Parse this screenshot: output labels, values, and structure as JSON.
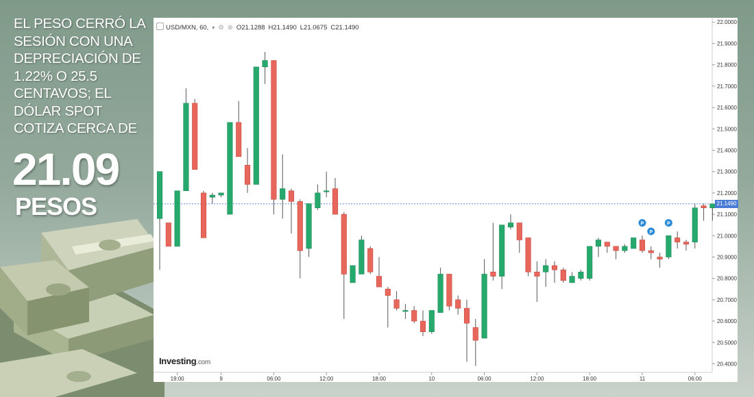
{
  "headline": "EL PESO CERRÓ LA SESIÓN CON UNA DEPRECIACIÓN DE 1.22% O 25.5 CENTAVOS; EL DÓLAR SPOT COTIZA CERCA DE",
  "big_price": "21.09",
  "big_unit": "PESOS",
  "chart_header": {
    "symbol": "USD/MXN, 60,",
    "open": "O21.1288",
    "high": "H21.1490",
    "low": "L21.0675",
    "close": "C21.1490"
  },
  "logo": {
    "brand": "Investing",
    "suffix": ".com"
  },
  "last_price_label": "21.1490",
  "colors": {
    "up": "#26a96c",
    "down": "#e8675c",
    "wick": "#555555",
    "last_line": "#4a7bd6",
    "marker": "#2a8ad8"
  },
  "chart_data": {
    "type": "candlestick",
    "title": "",
    "symbol": "USD/MXN",
    "interval": "60",
    "ylim": [
      20.36,
      22.02
    ],
    "y_ticks": [
      "22.0000",
      "21.9000",
      "21.8000",
      "21.7000",
      "21.6000",
      "21.5000",
      "21.4000",
      "21.3000",
      "21.2000",
      "21.1000",
      "21.0000",
      "20.9000",
      "20.8000",
      "20.7000",
      "20.6000",
      "20.5000",
      "20.4000"
    ],
    "x_ticks": [
      {
        "label": "19:00",
        "index": 2
      },
      {
        "label": "9",
        "index": 7
      },
      {
        "label": "06:00",
        "index": 13
      },
      {
        "label": "12:00",
        "index": 19
      },
      {
        "label": "18:00",
        "index": 25
      },
      {
        "label": "10",
        "index": 31
      },
      {
        "label": "06:00",
        "index": 37
      },
      {
        "label": "12:00",
        "index": 43
      },
      {
        "label": "18:00",
        "index": 49
      },
      {
        "label": "11",
        "index": 55
      },
      {
        "label": "06:00",
        "index": 61
      }
    ],
    "last_price": 21.149,
    "markers": [
      {
        "label": "P",
        "index": 55,
        "y": 21.06
      },
      {
        "label": "P",
        "index": 56,
        "y": 21.02
      },
      {
        "label": "P",
        "index": 58,
        "y": 21.06
      }
    ],
    "candles": [
      {
        "o": 21.08,
        "h": 21.3,
        "l": 20.84,
        "c": 21.3
      },
      {
        "o": 21.06,
        "h": 21.06,
        "l": 20.95,
        "c": 20.95
      },
      {
        "o": 20.95,
        "h": 21.21,
        "l": 20.95,
        "c": 21.21
      },
      {
        "o": 21.21,
        "h": 21.69,
        "l": 21.21,
        "c": 21.62
      },
      {
        "o": 21.62,
        "h": 21.64,
        "l": 21.31,
        "c": 21.31
      },
      {
        "o": 21.2,
        "h": 21.21,
        "l": 20.99,
        "c": 20.99
      },
      {
        "o": 21.18,
        "h": 21.2,
        "l": 21.15,
        "c": 21.19
      },
      {
        "o": 21.19,
        "h": 21.2,
        "l": 21.18,
        "c": 21.2
      },
      {
        "o": 21.1,
        "h": 21.53,
        "l": 21.1,
        "c": 21.53
      },
      {
        "o": 21.53,
        "h": 21.63,
        "l": 21.37,
        "c": 21.37
      },
      {
        "o": 21.33,
        "h": 21.41,
        "l": 21.2,
        "c": 21.24
      },
      {
        "o": 21.24,
        "h": 21.79,
        "l": 21.24,
        "c": 21.79
      },
      {
        "o": 21.79,
        "h": 21.86,
        "l": 21.71,
        "c": 21.82
      },
      {
        "o": 21.82,
        "h": 21.82,
        "l": 21.1,
        "c": 21.17
      },
      {
        "o": 21.17,
        "h": 21.38,
        "l": 21.08,
        "c": 21.22
      },
      {
        "o": 21.21,
        "h": 21.22,
        "l": 21.01,
        "c": 21.16
      },
      {
        "o": 21.16,
        "h": 21.17,
        "l": 20.8,
        "c": 20.93
      },
      {
        "o": 20.94,
        "h": 21.15,
        "l": 20.9,
        "c": 21.15
      },
      {
        "o": 21.13,
        "h": 21.24,
        "l": 21.12,
        "c": 21.2
      },
      {
        "o": 21.21,
        "h": 21.3,
        "l": 21.18,
        "c": 21.21
      },
      {
        "o": 21.22,
        "h": 21.27,
        "l": 21.1,
        "c": 21.1
      },
      {
        "o": 21.1,
        "h": 21.11,
        "l": 20.61,
        "c": 20.82
      },
      {
        "o": 20.78,
        "h": 20.86,
        "l": 20.78,
        "c": 20.86
      },
      {
        "o": 20.82,
        "h": 21.0,
        "l": 20.82,
        "c": 20.98
      },
      {
        "o": 20.94,
        "h": 20.95,
        "l": 20.82,
        "c": 20.83
      },
      {
        "o": 20.81,
        "h": 20.9,
        "l": 20.76,
        "c": 20.76
      },
      {
        "o": 20.75,
        "h": 20.76,
        "l": 20.57,
        "c": 20.72
      },
      {
        "o": 20.7,
        "h": 20.74,
        "l": 20.65,
        "c": 20.66
      },
      {
        "o": 20.65,
        "h": 20.68,
        "l": 20.61,
        "c": 20.65
      },
      {
        "o": 20.65,
        "h": 20.67,
        "l": 20.59,
        "c": 20.6
      },
      {
        "o": 20.6,
        "h": 20.65,
        "l": 20.53,
        "c": 20.55
      },
      {
        "o": 20.55,
        "h": 20.65,
        "l": 20.54,
        "c": 20.65
      },
      {
        "o": 20.64,
        "h": 20.85,
        "l": 20.64,
        "c": 20.82
      },
      {
        "o": 20.82,
        "h": 20.82,
        "l": 20.65,
        "c": 20.67
      },
      {
        "o": 20.7,
        "h": 20.72,
        "l": 20.63,
        "c": 20.66
      },
      {
        "o": 20.66,
        "h": 20.7,
        "l": 20.41,
        "c": 20.59
      },
      {
        "o": 20.57,
        "h": 20.61,
        "l": 20.39,
        "c": 20.51
      },
      {
        "o": 20.52,
        "h": 20.89,
        "l": 20.52,
        "c": 20.82
      },
      {
        "o": 20.83,
        "h": 21.06,
        "l": 20.79,
        "c": 20.81
      },
      {
        "o": 20.81,
        "h": 21.05,
        "l": 20.75,
        "c": 21.05
      },
      {
        "o": 21.04,
        "h": 21.1,
        "l": 21.03,
        "c": 21.06
      },
      {
        "o": 21.06,
        "h": 21.06,
        "l": 20.92,
        "c": 20.98
      },
      {
        "o": 20.99,
        "h": 20.99,
        "l": 20.81,
        "c": 20.83
      },
      {
        "o": 20.83,
        "h": 20.88,
        "l": 20.69,
        "c": 20.81
      },
      {
        "o": 20.83,
        "h": 20.89,
        "l": 20.76,
        "c": 20.86
      },
      {
        "o": 20.86,
        "h": 20.88,
        "l": 20.78,
        "c": 20.84
      },
      {
        "o": 20.84,
        "h": 20.85,
        "l": 20.78,
        "c": 20.79
      },
      {
        "o": 20.78,
        "h": 20.83,
        "l": 20.78,
        "c": 20.81
      },
      {
        "o": 20.8,
        "h": 20.84,
        "l": 20.79,
        "c": 20.83
      },
      {
        "o": 20.8,
        "h": 20.95,
        "l": 20.79,
        "c": 20.95
      },
      {
        "o": 20.95,
        "h": 20.99,
        "l": 20.9,
        "c": 20.98
      },
      {
        "o": 20.97,
        "h": 20.97,
        "l": 20.92,
        "c": 20.95
      },
      {
        "o": 20.95,
        "h": 20.95,
        "l": 20.89,
        "c": 20.93
      },
      {
        "o": 20.93,
        "h": 20.96,
        "l": 20.92,
        "c": 20.95
      },
      {
        "o": 20.94,
        "h": 20.99,
        "l": 20.94,
        "c": 20.99
      },
      {
        "o": 20.98,
        "h": 21.0,
        "l": 20.92,
        "c": 20.93
      },
      {
        "o": 20.93,
        "h": 20.95,
        "l": 20.89,
        "c": 20.92
      },
      {
        "o": 20.9,
        "h": 20.92,
        "l": 20.85,
        "c": 20.89
      },
      {
        "o": 20.9,
        "h": 21.0,
        "l": 20.89,
        "c": 21.0
      },
      {
        "o": 20.99,
        "h": 21.02,
        "l": 20.94,
        "c": 20.97
      },
      {
        "o": 20.97,
        "h": 20.98,
        "l": 20.93,
        "c": 20.96
      },
      {
        "o": 20.97,
        "h": 21.15,
        "l": 20.94,
        "c": 21.13
      },
      {
        "o": 21.14,
        "h": 21.15,
        "l": 21.07,
        "c": 21.13
      },
      {
        "o": 21.13,
        "h": 21.15,
        "l": 21.07,
        "c": 21.149
      }
    ]
  }
}
